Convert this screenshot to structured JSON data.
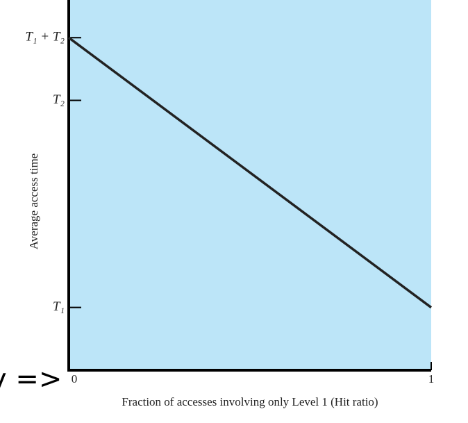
{
  "chart_data": {
    "type": "line",
    "annotation": "y =>",
    "x_label": "Fraction of accesses involving only Level 1 (Hit ratio)",
    "y_label": "Average access time",
    "x": [
      0,
      1
    ],
    "series": [
      {
        "color": "#222222",
        "values": [
          5.3,
          1
        ]
      }
    ],
    "xlim": [
      0,
      1
    ],
    "xticks": [
      0,
      1
    ],
    "ylim": [
      0,
      5.9
    ],
    "yticks": [
      {
        "value": 1,
        "label": "T₁"
      },
      {
        "value": 4.3,
        "label": "T₂"
      },
      {
        "value": 5.3,
        "label": "T₁ + T₂"
      }
    ],
    "background": "#bce5f8"
  }
}
